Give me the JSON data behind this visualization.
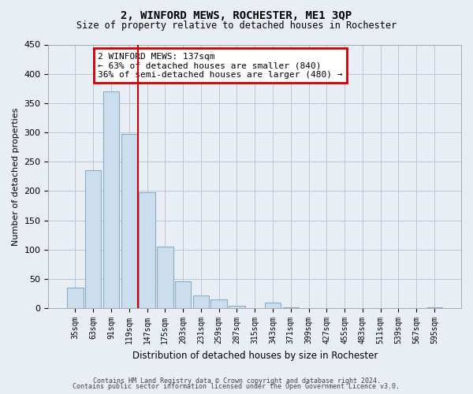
{
  "title": "2, WINFORD MEWS, ROCHESTER, ME1 3QP",
  "subtitle": "Size of property relative to detached houses in Rochester",
  "xlabel": "Distribution of detached houses by size in Rochester",
  "ylabel": "Number of detached properties",
  "categories": [
    "35sqm",
    "63sqm",
    "91sqm",
    "119sqm",
    "147sqm",
    "175sqm",
    "203sqm",
    "231sqm",
    "259sqm",
    "287sqm",
    "315sqm",
    "343sqm",
    "371sqm",
    "399sqm",
    "427sqm",
    "455sqm",
    "483sqm",
    "511sqm",
    "539sqm",
    "567sqm",
    "595sqm"
  ],
  "values": [
    35,
    235,
    370,
    298,
    198,
    105,
    46,
    22,
    15,
    4,
    0,
    10,
    1,
    0,
    0,
    0,
    0,
    0,
    0,
    0,
    1
  ],
  "bar_color": "#ccdded",
  "bar_edge_color": "#89afc8",
  "vline_color": "#cc0000",
  "annotation_title": "2 WINFORD MEWS: 137sqm",
  "annotation_line1": "← 63% of detached houses are smaller (840)",
  "annotation_line2": "36% of semi-detached houses are larger (480) →",
  "annotation_box_color": "#cc0000",
  "ylim": [
    0,
    450
  ],
  "yticks": [
    0,
    50,
    100,
    150,
    200,
    250,
    300,
    350,
    400,
    450
  ],
  "footnote1": "Contains HM Land Registry data © Crown copyright and database right 2024.",
  "footnote2": "Contains public sector information licensed under the Open Government Licence v3.0.",
  "bg_color": "#e8eef4",
  "plot_bg_color": "#e8eef4"
}
